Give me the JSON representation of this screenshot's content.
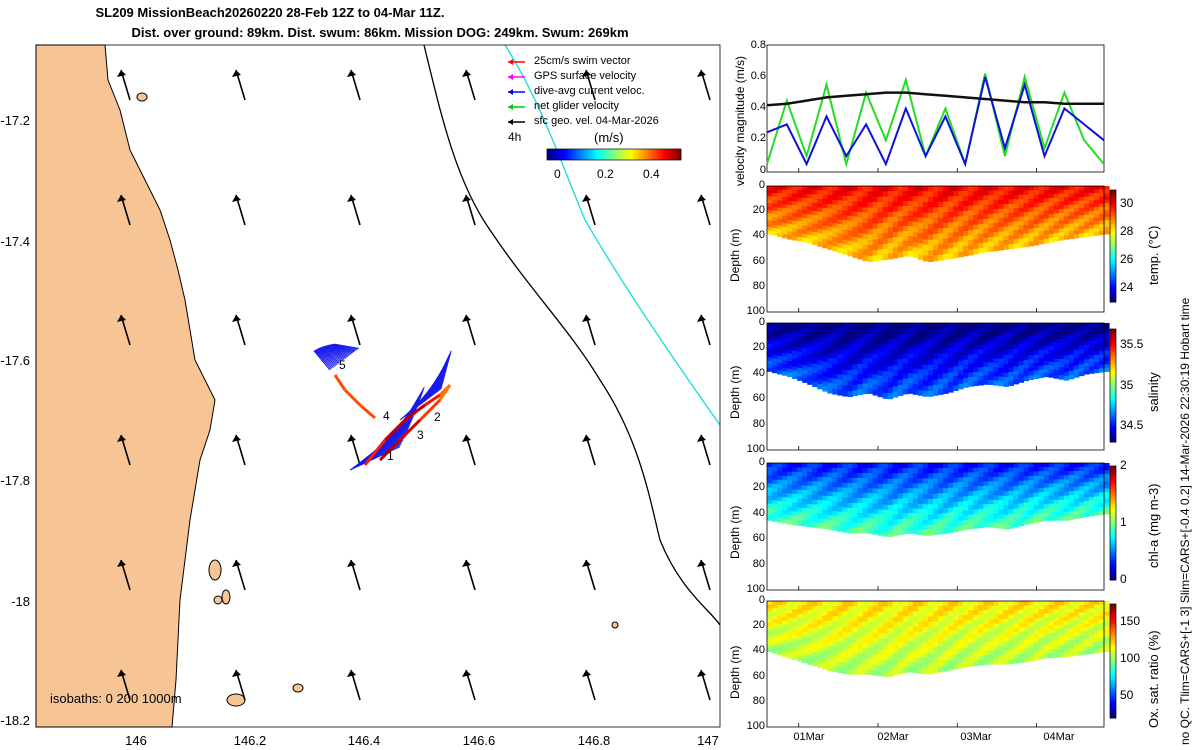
{
  "header": {
    "title_line1": "SL209 MissionBeach20260220 28-Feb 12Z to 04-Mar 11Z.",
    "title_line2": "Dist. over ground: 89km. Dist. swum: 86km. Mission DOG: 249km. Swum: 269km"
  },
  "map": {
    "lon_range": [
      145.8,
      147.02
    ],
    "lat_range": [
      -18.2,
      -17.05
    ],
    "xticks": [
      "146",
      "146.2",
      "146.4",
      "146.6",
      "146.8",
      "147"
    ],
    "yticks": [
      "-17.2",
      "-17.4",
      "-17.6",
      "-17.8",
      "-18",
      "-18.2"
    ],
    "legend": [
      {
        "label": "25cm/s swim vector",
        "color": "#ff0000"
      },
      {
        "label": "GPS surface velocity",
        "color": "#ff00ff"
      },
      {
        "label": "dive-avg current veloc.",
        "color": "#0000ff"
      },
      {
        "label": "net glider velocity",
        "color": "#00cc00"
      },
      {
        "label": "sfc geo. vel. 04-Mar-2026",
        "color": "#000000"
      }
    ],
    "interval_label": "4h",
    "colorbar_title": "(m/s)",
    "colorbar_ticks": [
      "0",
      "0.2",
      "0.4"
    ],
    "colorbar_range": [
      0,
      0.5
    ],
    "isobath_label": "isobaths: 0   200  1000m",
    "track_markers": [
      "1",
      "2",
      "3",
      "4",
      "5"
    ],
    "colors": {
      "land": "#f7c595",
      "ocean": "#ffffff",
      "cyan_line": "#22dddd"
    }
  },
  "chart_data": [
    {
      "type": "line",
      "title": "",
      "ylabel": "velocity magnitude (m/s)",
      "ylim": [
        0,
        0.8
      ],
      "yticks": [
        "0",
        "0.2",
        "0.4",
        "0.6",
        "0.8"
      ],
      "x_days": [
        0,
        0.25,
        0.5,
        0.75,
        1.0,
        1.25,
        1.5,
        1.75,
        2.0,
        2.25,
        2.5,
        2.75,
        3.0,
        3.25,
        3.5,
        3.75,
        4.0,
        4.25
      ],
      "series": [
        {
          "name": "net glider velocity",
          "color": "#22dd22",
          "values": [
            0.05,
            0.45,
            0.1,
            0.55,
            0.05,
            0.5,
            0.2,
            0.58,
            0.1,
            0.4,
            0.05,
            0.62,
            0.1,
            0.6,
            0.15,
            0.5,
            0.2,
            0.05
          ]
        },
        {
          "name": "dive-avg current veloc.",
          "color": "#1010dd",
          "values": [
            0.25,
            0.3,
            0.05,
            0.35,
            0.1,
            0.3,
            0.05,
            0.4,
            0.1,
            0.35,
            0.05,
            0.6,
            0.15,
            0.55,
            0.1,
            0.4,
            0.3,
            0.2
          ]
        },
        {
          "name": "sfc geo. vel.",
          "color": "#111111",
          "values": [
            0.42,
            0.43,
            0.45,
            0.47,
            0.48,
            0.49,
            0.5,
            0.5,
            0.49,
            0.48,
            0.47,
            0.46,
            0.45,
            0.44,
            0.44,
            0.43,
            0.43,
            0.43
          ]
        }
      ]
    },
    {
      "type": "heatmap",
      "ylabel": "Depth (m)",
      "variable": "temp. (°C)",
      "ylim": [
        100,
        0
      ],
      "yticks": [
        "0",
        "20",
        "40",
        "60",
        "80",
        "100"
      ],
      "colorbar_ticks": [
        "24",
        "26",
        "28",
        "30"
      ],
      "colorbar_range": [
        23,
        31
      ],
      "max_depth_profile": [
        38,
        42,
        45,
        50,
        55,
        60,
        58,
        55,
        60,
        58,
        55,
        52,
        50,
        48,
        45,
        42,
        40,
        38
      ],
      "surface_value": 30,
      "deep_value": 28.5
    },
    {
      "type": "heatmap",
      "ylabel": "Depth (m)",
      "variable": "salinity",
      "ylim": [
        100,
        0
      ],
      "yticks": [
        "0",
        "20",
        "40",
        "60",
        "80",
        "100"
      ],
      "colorbar_ticks": [
        "34.5",
        "35",
        "35.5"
      ],
      "colorbar_range": [
        34.3,
        35.7
      ],
      "max_depth_profile": [
        38,
        42,
        48,
        55,
        58,
        55,
        60,
        55,
        58,
        55,
        50,
        48,
        50,
        45,
        42,
        45,
        40,
        38
      ],
      "surface_value": 34.3,
      "deep_value": 34.6
    },
    {
      "type": "heatmap",
      "ylabel": "Depth (m)",
      "variable": "chl-a (mg m-3)",
      "ylim": [
        100,
        0
      ],
      "yticks": [
        "0",
        "20",
        "40",
        "60",
        "80",
        "100"
      ],
      "colorbar_ticks": [
        "0",
        "1",
        "2"
      ],
      "colorbar_range": [
        0,
        2
      ],
      "max_depth_profile": [
        45,
        48,
        50,
        52,
        55,
        55,
        58,
        55,
        57,
        55,
        52,
        50,
        52,
        48,
        45,
        45,
        42,
        40
      ],
      "surface_value": 0.3,
      "deep_value": 0.9
    },
    {
      "type": "heatmap",
      "ylabel": "Depth (m)",
      "variable": "Ox. sat. ratio (%)",
      "ylim": [
        100,
        0
      ],
      "yticks": [
        "0",
        "20",
        "40",
        "60",
        "80",
        "100"
      ],
      "colorbar_ticks": [
        "50",
        "100",
        "150"
      ],
      "colorbar_range": [
        20,
        175
      ],
      "max_depth_profile": [
        40,
        45,
        50,
        55,
        58,
        58,
        60,
        56,
        58,
        55,
        52,
        50,
        50,
        48,
        45,
        44,
        42,
        40
      ],
      "surface_value": 120,
      "deep_value": 105
    }
  ],
  "date_labels": [
    "01Mar",
    "02Mar",
    "03Mar",
    "04Mar"
  ],
  "side_note": "no QC. Tlim=CARS+[-1 3] Slim=CARS+[-0.4 0.2] 14-Mar-2026 22:30:19 Hobart time"
}
